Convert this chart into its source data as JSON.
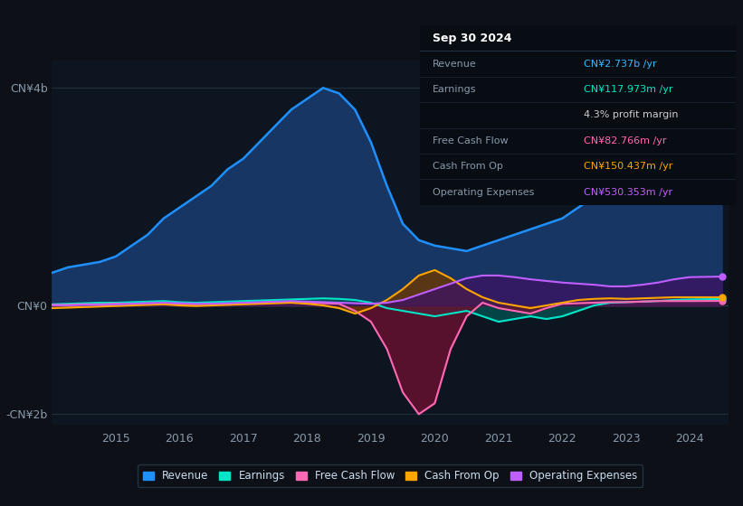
{
  "background_color": "#0d1117",
  "plot_bg_color": "#0d1620",
  "info_box_bg": "#080d14",
  "info_box_title": "Sep 30 2024",
  "info_rows": [
    {
      "label": "Revenue",
      "value": "CN¥2.737b /yr",
      "color": "#38b6ff"
    },
    {
      "label": "Earnings",
      "value": "CN¥117.973m /yr",
      "color": "#00e5c8"
    },
    {
      "label": "",
      "value": "4.3% profit margin",
      "color": "#cccccc"
    },
    {
      "label": "Free Cash Flow",
      "value": "CN¥82.766m /yr",
      "color": "#ff69b4"
    },
    {
      "label": "Cash From Op",
      "value": "CN¥150.437m /yr",
      "color": "#ffa500"
    },
    {
      "label": "Operating Expenses",
      "value": "CN¥530.353m /yr",
      "color": "#bf5fff"
    }
  ],
  "years": [
    2014.0,
    2014.25,
    2014.5,
    2014.75,
    2015.0,
    2015.25,
    2015.5,
    2015.75,
    2016.0,
    2016.25,
    2016.5,
    2016.75,
    2017.0,
    2017.25,
    2017.5,
    2017.75,
    2018.0,
    2018.25,
    2018.5,
    2018.75,
    2019.0,
    2019.25,
    2019.5,
    2019.75,
    2020.0,
    2020.25,
    2020.5,
    2020.75,
    2021.0,
    2021.25,
    2021.5,
    2021.75,
    2022.0,
    2022.25,
    2022.5,
    2022.75,
    2023.0,
    2023.25,
    2023.5,
    2023.75,
    2024.0,
    2024.5
  ],
  "revenue": [
    0.6,
    0.7,
    0.75,
    0.8,
    0.9,
    1.1,
    1.3,
    1.6,
    1.8,
    2.0,
    2.2,
    2.5,
    2.7,
    3.0,
    3.3,
    3.6,
    3.8,
    4.0,
    3.9,
    3.6,
    3.0,
    2.2,
    1.5,
    1.2,
    1.1,
    1.05,
    1.0,
    1.1,
    1.2,
    1.3,
    1.4,
    1.5,
    1.6,
    1.8,
    2.0,
    2.1,
    2.2,
    2.3,
    2.4,
    2.5,
    2.65,
    2.737
  ],
  "earnings": [
    0.02,
    0.03,
    0.04,
    0.05,
    0.05,
    0.06,
    0.07,
    0.08,
    0.06,
    0.05,
    0.06,
    0.07,
    0.08,
    0.09,
    0.1,
    0.11,
    0.12,
    0.13,
    0.12,
    0.1,
    0.05,
    -0.05,
    -0.1,
    -0.15,
    -0.2,
    -0.15,
    -0.1,
    -0.2,
    -0.3,
    -0.25,
    -0.2,
    -0.25,
    -0.2,
    -0.1,
    0.0,
    0.05,
    0.06,
    0.07,
    0.08,
    0.1,
    0.11,
    0.118
  ],
  "free_cash_flow": [
    0.01,
    0.01,
    0.02,
    0.02,
    0.03,
    0.03,
    0.04,
    0.04,
    0.02,
    0.02,
    0.03,
    0.03,
    0.04,
    0.05,
    0.06,
    0.07,
    0.05,
    0.04,
    0.03,
    -0.1,
    -0.3,
    -0.8,
    -1.6,
    -2.0,
    -1.8,
    -0.8,
    -0.2,
    0.05,
    -0.05,
    -0.1,
    -0.15,
    -0.05,
    0.03,
    0.04,
    0.05,
    0.06,
    0.06,
    0.07,
    0.08,
    0.08,
    0.08,
    0.083
  ],
  "cash_from_op": [
    -0.05,
    -0.04,
    -0.03,
    -0.02,
    -0.01,
    0.0,
    0.01,
    0.02,
    0.0,
    -0.01,
    0.0,
    0.01,
    0.02,
    0.03,
    0.04,
    0.05,
    0.03,
    0.0,
    -0.05,
    -0.15,
    -0.05,
    0.1,
    0.3,
    0.55,
    0.65,
    0.5,
    0.3,
    0.15,
    0.05,
    0.0,
    -0.05,
    0.0,
    0.05,
    0.1,
    0.12,
    0.13,
    0.12,
    0.13,
    0.14,
    0.15,
    0.15,
    0.15
  ],
  "operating_expenses": [
    0.0,
    0.0,
    0.01,
    0.01,
    0.02,
    0.03,
    0.04,
    0.05,
    0.04,
    0.03,
    0.03,
    0.04,
    0.05,
    0.06,
    0.07,
    0.08,
    0.07,
    0.06,
    0.05,
    0.04,
    0.03,
    0.05,
    0.1,
    0.2,
    0.3,
    0.4,
    0.5,
    0.55,
    0.55,
    0.52,
    0.48,
    0.45,
    0.42,
    0.4,
    0.38,
    0.35,
    0.35,
    0.38,
    0.42,
    0.48,
    0.52,
    0.53
  ],
  "revenue_color": "#1e90ff",
  "earnings_color": "#00e5c8",
  "free_cash_flow_color": "#ff69b4",
  "cash_from_op_color": "#ffa500",
  "operating_expenses_color": "#bf5fff",
  "revenue_fill": "#1a3a6b",
  "earnings_fill": "#005555",
  "free_cash_flow_fill": "#6b1030",
  "cash_from_op_fill": "#6b3800",
  "operating_expenses_fill": "#3d1265",
  "ylim": [
    -2.2,
    4.5
  ],
  "yticks": [
    -2.0,
    0.0,
    4.0
  ],
  "ytick_labels": [
    "-CN¥2b",
    "CN¥0",
    "CN¥4b"
  ],
  "xtick_years": [
    2015,
    2016,
    2017,
    2018,
    2019,
    2020,
    2021,
    2022,
    2023,
    2024
  ],
  "legend_items": [
    {
      "label": "Revenue",
      "color": "#1e90ff"
    },
    {
      "label": "Earnings",
      "color": "#00e5c8"
    },
    {
      "label": "Free Cash Flow",
      "color": "#ff69b4"
    },
    {
      "label": "Cash From Op",
      "color": "#ffa500"
    },
    {
      "label": "Operating Expenses",
      "color": "#bf5fff"
    }
  ]
}
